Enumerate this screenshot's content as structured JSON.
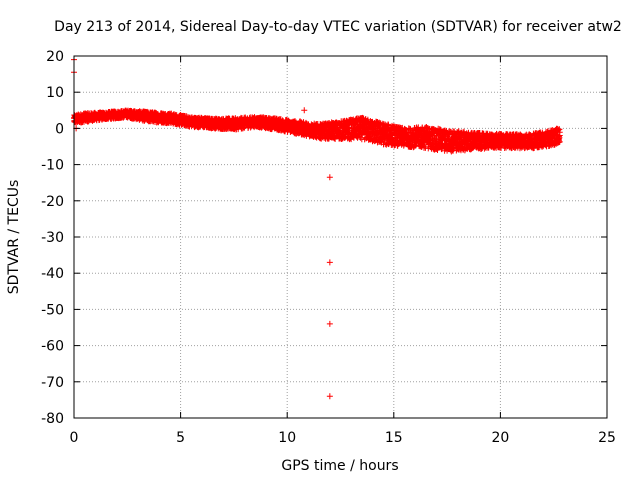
{
  "chart_data": {
    "type": "scatter",
    "title": "Day 213 of 2014, Sidereal Day-to-day VTEC variation (SDTVAR) for receiver atw2",
    "xlabel": "GPS time / hours",
    "ylabel": "SDTVAR / TECUs",
    "xlim": [
      0,
      25
    ],
    "ylim": [
      -80,
      20
    ],
    "xticks": [
      0,
      5,
      10,
      15,
      20,
      25
    ],
    "yticks": [
      20,
      10,
      0,
      -10,
      -20,
      -30,
      -40,
      -50,
      -60,
      -70,
      -80
    ],
    "grid": true,
    "marker": "+",
    "marker_color": "#ff0000",
    "series": [
      {
        "name": "SDTVAR",
        "band": [
          {
            "x": 0.0,
            "y": 2.5,
            "spread": 1.2
          },
          {
            "x": 0.5,
            "y": 3.0,
            "spread": 1.2
          },
          {
            "x": 1.5,
            "y": 3.5,
            "spread": 1.0
          },
          {
            "x": 2.5,
            "y": 4.0,
            "spread": 1.0
          },
          {
            "x": 3.5,
            "y": 3.2,
            "spread": 1.4
          },
          {
            "x": 4.5,
            "y": 2.8,
            "spread": 1.4
          },
          {
            "x": 5.5,
            "y": 1.8,
            "spread": 1.4
          },
          {
            "x": 6.5,
            "y": 1.4,
            "spread": 1.4
          },
          {
            "x": 7.5,
            "y": 1.2,
            "spread": 1.6
          },
          {
            "x": 8.5,
            "y": 1.8,
            "spread": 1.4
          },
          {
            "x": 9.5,
            "y": 1.2,
            "spread": 1.6
          },
          {
            "x": 10.5,
            "y": 0.2,
            "spread": 1.8
          },
          {
            "x": 11.5,
            "y": -0.8,
            "spread": 2.0
          },
          {
            "x": 12.5,
            "y": -0.5,
            "spread": 2.5
          },
          {
            "x": 13.5,
            "y": 0.0,
            "spread": 3.0
          },
          {
            "x": 14.5,
            "y": -1.5,
            "spread": 3.0
          },
          {
            "x": 15.5,
            "y": -2.5,
            "spread": 2.5
          },
          {
            "x": 16.5,
            "y": -2.5,
            "spread": 3.0
          },
          {
            "x": 17.5,
            "y": -3.5,
            "spread": 3.0
          },
          {
            "x": 18.5,
            "y": -3.5,
            "spread": 2.5
          },
          {
            "x": 19.5,
            "y": -3.5,
            "spread": 2.0
          },
          {
            "x": 20.5,
            "y": -3.5,
            "spread": 2.0
          },
          {
            "x": 21.5,
            "y": -3.5,
            "spread": 2.0
          },
          {
            "x": 22.5,
            "y": -2.5,
            "spread": 2.2
          },
          {
            "x": 22.8,
            "y": -1.8,
            "spread": 2.0
          }
        ],
        "outliers": [
          {
            "x": 0.0,
            "y": 19.0
          },
          {
            "x": 0.0,
            "y": 15.5
          },
          {
            "x": 0.1,
            "y": 0.0
          },
          {
            "x": 10.8,
            "y": 5.0
          },
          {
            "x": 12.0,
            "y": -13.5
          },
          {
            "x": 12.0,
            "y": -37.0
          },
          {
            "x": 12.0,
            "y": -54.0
          },
          {
            "x": 12.0,
            "y": -74.0
          }
        ]
      }
    ]
  }
}
